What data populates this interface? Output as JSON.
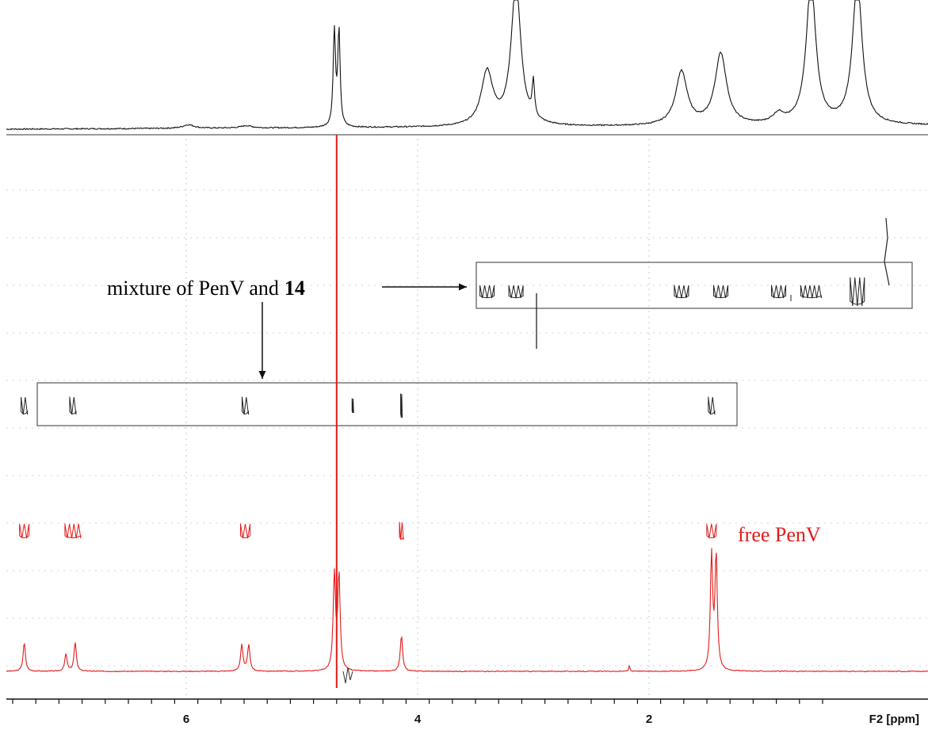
{
  "chart_data": {
    "type": "line",
    "xlabel": "F2 [ppm]",
    "x_axis_reversed": true,
    "xlim": [
      7.55,
      0.35
    ],
    "x_ticks": [
      6,
      4,
      2
    ],
    "colors": {
      "top_trace": "#111111",
      "free_trace": "#e31b1b",
      "red_line": "#e31b1b",
      "box": "#555555"
    },
    "series": [
      {
        "name": "",
        "color": "#111111",
        "panel": "top 1D projection",
        "peaks": [
          {
            "ppm": 5.98,
            "height": 0.03
          },
          {
            "ppm": 5.48,
            "height": 0.02
          },
          {
            "ppm": 4.72,
            "height": 0.8
          },
          {
            "ppm": 4.68,
            "height": 0.8
          },
          {
            "ppm": 3.4,
            "height": 0.45
          },
          {
            "ppm": 3.15,
            "height": 1.2
          },
          {
            "ppm": 3.0,
            "height": 0.3
          },
          {
            "ppm": 1.72,
            "height": 0.45
          },
          {
            "ppm": 1.38,
            "height": 0.6
          },
          {
            "ppm": 0.88,
            "height": 0.08
          },
          {
            "ppm": 0.6,
            "height": 1.2
          },
          {
            "ppm": 0.2,
            "height": 1.2
          }
        ]
      },
      {
        "name": "",
        "color": "#e31b1b",
        "panel": "bottom 1D spectrum",
        "peaks": [
          {
            "ppm": 7.4,
            "height": 0.3
          },
          {
            "ppm": 7.04,
            "height": 0.18
          },
          {
            "ppm": 6.96,
            "height": 0.3
          },
          {
            "ppm": 5.52,
            "height": 0.28
          },
          {
            "ppm": 5.46,
            "height": 0.28
          },
          {
            "ppm": 4.72,
            "height": 1.0
          },
          {
            "ppm": 4.68,
            "height": 1.0
          },
          {
            "ppm": 4.14,
            "height": 0.38
          },
          {
            "ppm": 2.17,
            "height": 0.06
          },
          {
            "ppm": 1.46,
            "height": 1.2
          },
          {
            "ppm": 1.42,
            "height": 1.2
          }
        ]
      }
    ],
    "cross_peaks": {
      "boxed_upper_ppm": [
        3.4,
        3.15,
        1.72,
        1.38,
        0.88,
        0.6,
        0.2
      ],
      "boxed_lower_ppm": [
        7.4,
        6.98,
        5.49,
        4.56,
        4.14,
        1.46
      ],
      "free_ppm": [
        7.4,
        6.98,
        5.49,
        4.14,
        1.46
      ]
    },
    "annotations": [
      {
        "text": "mixture of PenV and",
        "bold_suffix": "14"
      },
      {
        "text": "free PenV"
      }
    ]
  }
}
